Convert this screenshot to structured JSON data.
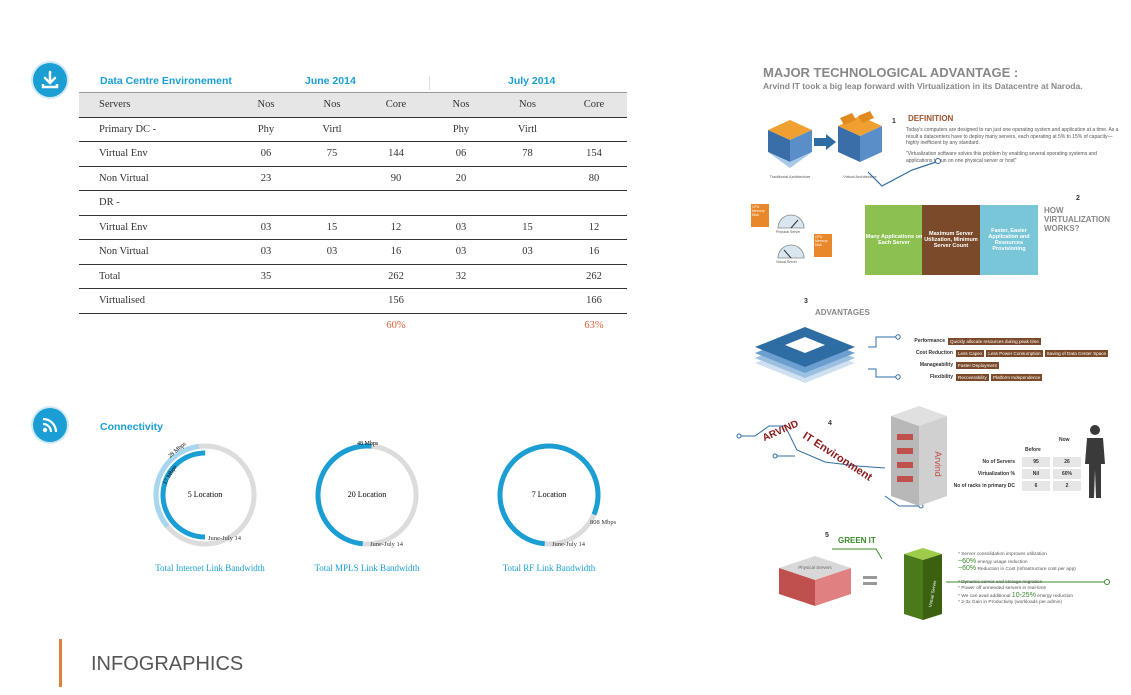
{
  "table": {
    "title": "Data Centre Environement",
    "period1": "June 2014",
    "period2": "July 2014",
    "headers": [
      "Servers",
      "Nos",
      "Nos",
      "Core",
      "Nos",
      "Nos",
      "Core"
    ],
    "rows": [
      [
        "Primary DC -",
        "Phy",
        "Virtl",
        "",
        "Phy",
        "Virtl",
        ""
      ],
      [
        "Virtual Env",
        "06",
        "75",
        "144",
        "06",
        "78",
        "154"
      ],
      [
        "Non Virtual",
        "23",
        "",
        "90",
        "20",
        "",
        "80"
      ],
      [
        "DR -",
        "",
        "",
        "",
        "",
        "",
        ""
      ],
      [
        "Virtual Env",
        "03",
        "15",
        "12",
        "03",
        "15",
        "12"
      ],
      [
        "Non Virtual",
        "03",
        "03",
        "16",
        "03",
        "03",
        "16"
      ],
      [
        "Total",
        "35",
        "",
        "262",
        "32",
        "",
        "262"
      ],
      [
        "Virtualised",
        "",
        "",
        "156",
        "",
        "",
        "166"
      ]
    ],
    "percent_june": "60%",
    "percent_july": "63%"
  },
  "connectivity": {
    "title": "Connectivity",
    "donuts": [
      {
        "center": "5 Location",
        "label_top": "28 Mbps",
        "label_mid": "17 Mbps",
        "label_bottom": "June-July 14",
        "caption": "Total Internet Link Bandwidth",
        "fraction_outer": 0.34,
        "fraction_inner": 0.5
      },
      {
        "center": "20 Location",
        "label_top": "48 Mbps",
        "label_bottom": "June-July 14",
        "caption": "Total MPLS Link Bandwidth",
        "fraction_outer": 0.5
      },
      {
        "center": "7 Location",
        "label_side": "808 Mbps",
        "label_bottom": "June-July 14",
        "caption": "Total RF Link Bandwidth",
        "fraction_outer": 0.8
      }
    ]
  },
  "footer": {
    "title": "INFOGRAPHICS"
  },
  "infographic": {
    "title": "MAJOR TECHNOLOGICAL ADVANTAGE :",
    "subtitle": "Arvind IT took a big leap forward with Virtualization in its Datacentre at Naroda.",
    "s1": {
      "num": "1",
      "heading": "DEFINITION",
      "text1": "Today's computers are designed to run just one operating system and application at a time. As a result a datacenters have to deploy many servers, each operating at 5% to 15% of capacity— highly inefficient by any standard.",
      "text2": "\"Virtualization software solves this problem by enabling several operating systems and applications to run on one physical server or host\"",
      "cap_left": "Traditional Architecture",
      "cap_right": "Virtual Architecture"
    },
    "s2": {
      "num": "2",
      "heading": "HOW VIRTUALIZATION WORKS?",
      "box1": "Many Applications on Each Server",
      "box2": "Maximum Server Utilization, Minimum Server Count",
      "box3": "Faster, Easier Application and Resources Provisioning",
      "cap_physical": "Physical Server",
      "cap_virtual": "Virtual Server",
      "tag_left": "CPU Memory Disk",
      "tag_right": "CPU Memory Disk"
    },
    "s3": {
      "num": "3",
      "heading": "ADVANTAGES",
      "rows": [
        {
          "label": "Performance",
          "tags": [
            "Quickly allocate resources during peak time"
          ]
        },
        {
          "label": "Cost Reduction",
          "tags": [
            "Less Capex",
            "Less Power Consumption",
            "Saving of Data Center Space"
          ]
        },
        {
          "label": "Manageability",
          "tags": [
            "Faster Deployment"
          ]
        },
        {
          "label": "Flexibility",
          "tags": [
            "Recoverability",
            "Platform Independence"
          ]
        }
      ]
    },
    "s4": {
      "num": "4",
      "word1": "ARVIND",
      "word2": "IT Environment",
      "building_label": "Arvind",
      "col_before": "Before",
      "col_now": "Now",
      "rows": [
        {
          "label": "No of Servers",
          "before": "95",
          "now": "26"
        },
        {
          "label": "Virtualization %",
          "before": "Nil",
          "now": "60%"
        },
        {
          "label": "No of racks in primary DC",
          "before": "6",
          "now": "2"
        }
      ]
    },
    "s5": {
      "num": "5",
      "heading": "GREEN IT",
      "left_label": "Physical Servers",
      "right_label": "Virtual Server",
      "b1": "* Server consolidation improves utilization",
      "b2_big": "~60%",
      "b2": "energy usage reduction",
      "b3_big": "~60%",
      "b3": "Reduction in Cost (Infrastructure cost per app)",
      "b4": "* Dynamic server and storage migration",
      "b5": "* Power off unneeded servers in real-time",
      "b6_pre": "* We can avail additional",
      "b6_big": "10-25%",
      "b6": "energy reduction",
      "b7": "* 2-3x Gain in Productivity (workloads per admin)"
    }
  }
}
